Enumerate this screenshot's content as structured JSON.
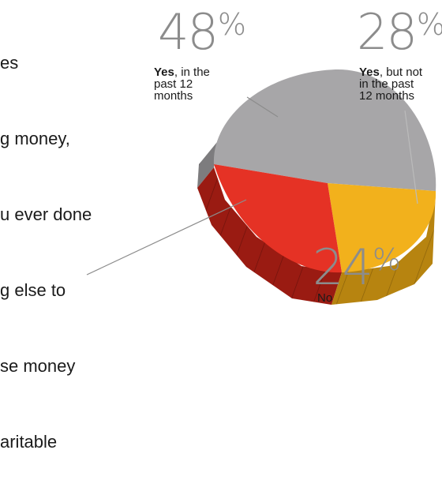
{
  "question_lines": [
    "es",
    "g money,",
    "u ever done",
    "g else to",
    "se money",
    "aritable"
  ],
  "chart_data": {
    "type": "pie",
    "slices": [
      {
        "label_bold": "Yes",
        "label_rest": ", in the past 12 months",
        "pct_value": "48",
        "pct_sign": "%",
        "value": 48,
        "color": "#a7a6a8"
      },
      {
        "label_bold": "Yes",
        "label_rest": ", but not in the past 12 months",
        "pct_value": "28",
        "pct_sign": "%",
        "value": 28,
        "color": "#f2b11c"
      },
      {
        "label_bold": "",
        "label_rest": "No",
        "pct_value": "24",
        "pct_sign": "%",
        "value": 24,
        "color": "#e53225"
      }
    ]
  },
  "captions": {
    "yes_past_line1_bold": "Yes",
    "yes_past_line1_rest": ", in the",
    "yes_past_line2": "past 12",
    "yes_past_line3": "months",
    "yes_not_line1_bold": "Yes",
    "yes_not_line1_rest": ", but not",
    "yes_not_line2": "in the past",
    "yes_not_line3": "12 months",
    "no_line1": "No"
  }
}
